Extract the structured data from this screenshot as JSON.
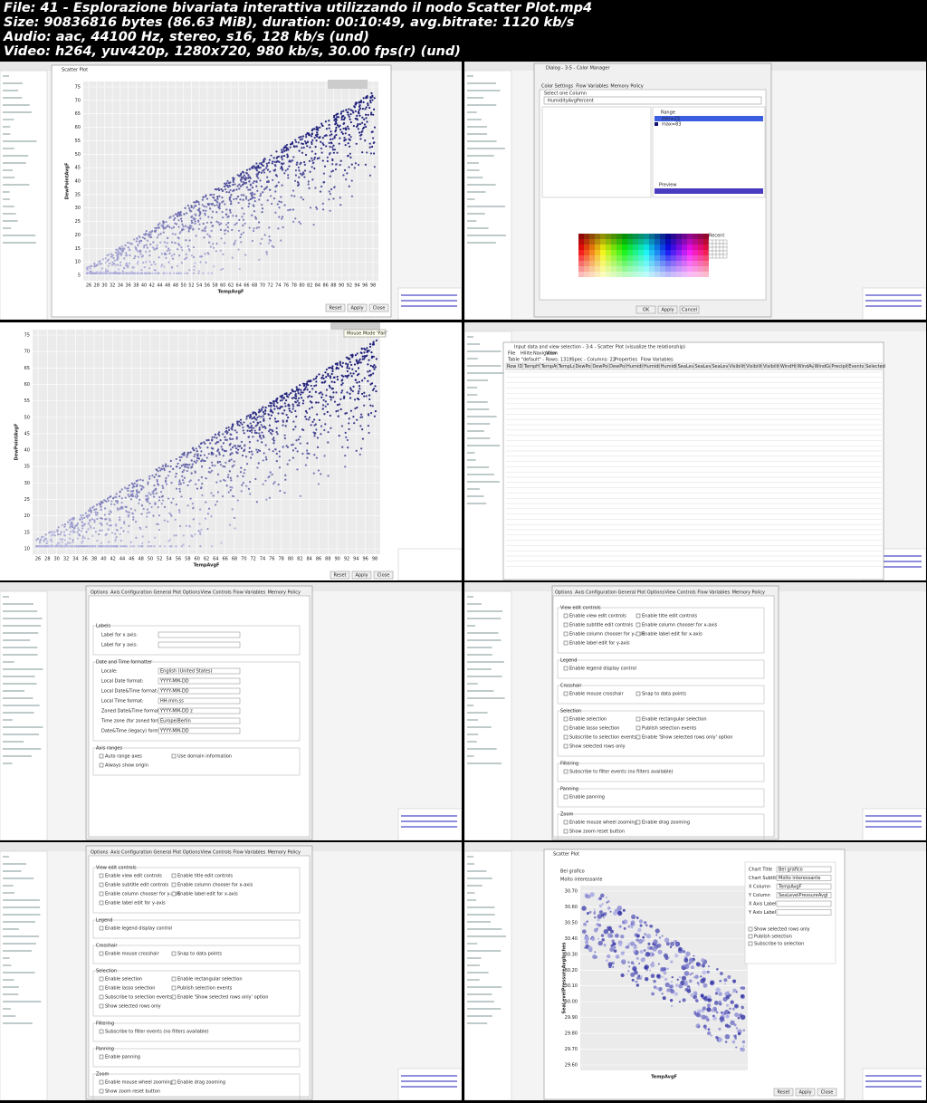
{
  "header": {
    "lines": [
      "File: 41 - Esplorazione bivariata interattiva utilizzando il nodo Scatter Plot.mp4",
      "Size: 90836816 bytes (86.63 MiB), duration: 00:10:49, avg.bitrate: 1120 kb/s",
      "Audio: aac, 44100 Hz, stereo, s16, 128 kb/s (und)",
      "Video: h264, yuv420p, 1280x720, 980 kb/s, 30.00 fps(r) (und)"
    ]
  },
  "frames": [
    {
      "window_title": "Scatter Plot",
      "y_label": "DewPointAvgF",
      "x_label": "TempAvgF",
      "yticks": [
        75,
        70,
        65,
        60,
        55,
        50,
        45,
        40,
        35,
        30,
        25,
        20,
        15,
        10,
        5
      ],
      "xticks": [
        26,
        28,
        30,
        32,
        34,
        36,
        38,
        40,
        42,
        44,
        46,
        48,
        50,
        52,
        54,
        56,
        58,
        60,
        62,
        64,
        66,
        68,
        70,
        72,
        74,
        76,
        78,
        80,
        82,
        84,
        86,
        88,
        90,
        92,
        94,
        96,
        98
      ],
      "buttons": [
        "Reset",
        "Apply",
        "Close"
      ]
    },
    {
      "window_title": "Dialog - 3:5 - Color Manager",
      "tabs": [
        "Color Settings",
        "Flow Variables",
        "Memory Policy"
      ],
      "column_label": "Select one Column",
      "column": "HumidityAvgPercent",
      "range": "Range",
      "range_items": [
        "min=23",
        "max=83"
      ],
      "preview": "Preview",
      "recent": "Recent",
      "buttons": [
        "OK",
        "Apply",
        "Cancel"
      ]
    },
    {
      "tooltip": "Mouse Mode 'Pan'",
      "y_label": "DewPointAvgF",
      "x_label": "TempAvgF",
      "yticks": [
        75,
        70,
        65,
        60,
        55,
        50,
        45,
        40,
        35,
        30,
        25,
        20,
        15,
        10
      ],
      "xticks": [
        26,
        28,
        30,
        32,
        34,
        36,
        38,
        40,
        42,
        44,
        46,
        48,
        50,
        52,
        54,
        56,
        58,
        60,
        62,
        64,
        66,
        68,
        70,
        72,
        74,
        76,
        78,
        80,
        82,
        84,
        86,
        88,
        90,
        92,
        94,
        96,
        98
      ],
      "buttons": [
        "Reset",
        "Apply",
        "Close"
      ]
    },
    {
      "window_title": "Input data and view selection - 3:4 - Scatter Plot (visualize the relationship)",
      "menu": [
        "File",
        "Hilite",
        "Navigation",
        "View"
      ],
      "tabs": [
        "Table \"default\" - Rows: 1319",
        "Spec - Columns: 22",
        "Properties",
        "Flow Variables"
      ],
      "headers": [
        "Row ID",
        "TempHighF",
        "TempAvgF",
        "TempLowF",
        "DewPoint",
        "DewPoint",
        "DewPoint",
        "Humidity",
        "Humidity",
        "Humidity",
        "SeaLevel",
        "SeaLevel",
        "SeaLevel",
        "Visibility",
        "Visibility",
        "Visibility",
        "WindHigh",
        "WindAvg",
        "WindGust",
        "Precipit",
        "Events",
        "Selected"
      ]
    },
    {
      "tabs": [
        "Options",
        "Axis Configuration",
        "General Plot Options",
        "View Controls",
        "Flow Variables",
        "Memory Policy"
      ],
      "groups": [
        {
          "title": "Labels",
          "fields": [
            {
              "label": "Label for x axis:"
            },
            {
              "label": "Label for y axis:"
            }
          ]
        },
        {
          "title": "Date and Time formatter",
          "fields": [
            {
              "label": "Locale:",
              "value": "English (United States)"
            },
            {
              "label": "Local Date format:",
              "value": "YYYY-MM-DD"
            },
            {
              "label": "Local Date&Time format:",
              "value": "YYYY-MM-DD"
            },
            {
              "label": "Local Time format:",
              "value": "HH:mm:ss"
            },
            {
              "label": "Zoned Date&Time format:",
              "value": "YYYY-MM-DD z"
            },
            {
              "label": "Time zone (for zoned format):",
              "value": "Europe/Berlin"
            },
            {
              "label": "Date&Time (legacy) format:",
              "value": "YYYY-MM-DD"
            }
          ]
        },
        {
          "title": "Axis ranges",
          "items": [
            "Auto range axes",
            "Use domain information",
            "Always show origin"
          ]
        }
      ]
    },
    {
      "tabs": [
        "Options",
        "Axis Configuration",
        "General Plot Options",
        "View Controls",
        "Flow Variables",
        "Memory Policy"
      ],
      "groups": [
        {
          "title": "View edit controls",
          "items": [
            "Enable view edit controls",
            "Enable title edit controls",
            "Enable subtitle edit controls",
            "Enable column chooser for x-axis",
            "Enable column chooser for y-axis",
            "Enable label edit for x-axis",
            "Enable label edit for y-axis"
          ]
        },
        {
          "title": "Legend",
          "items": [
            "Enable legend display control"
          ]
        },
        {
          "title": "Crosshair",
          "items": [
            "Enable mouse crosshair",
            "Snap to data points"
          ]
        },
        {
          "title": "Selection",
          "items": [
            "Enable selection",
            "Enable rectangular selection",
            "Enable lasso selection",
            "Publish selection events",
            "Subscribe to selection events",
            "Enable 'Show selected rows only' option",
            "Show selected rows only"
          ]
        },
        {
          "title": "Filtering",
          "items": [
            "Subscribe to filter events (no filters available)"
          ]
        },
        {
          "title": "Panning",
          "items": [
            "Enable panning"
          ]
        },
        {
          "title": "Zoom",
          "items": [
            "Enable mouse wheel zooming",
            "Enable drag zooming",
            "Show zoom reset button"
          ]
        }
      ]
    },
    {
      "tabs": [
        "Options",
        "Axis Configuration",
        "General Plot Options",
        "View Controls",
        "Flow Variables",
        "Memory Policy"
      ],
      "groups": [
        {
          "title": "View edit controls",
          "items": [
            "Enable view edit controls",
            "Enable title edit controls",
            "Enable subtitle edit controls",
            "Enable column chooser for x-axis",
            "Enable column chooser for y-axis",
            "Enable label edit for x-axis",
            "Enable label edit for y-axis"
          ]
        },
        {
          "title": "Legend",
          "items": [
            "Enable legend display control"
          ]
        },
        {
          "title": "Crosshair",
          "items": [
            "Enable mouse crosshair",
            "Snap to data points"
          ]
        },
        {
          "title": "Selection",
          "items": [
            "Enable selection",
            "Enable rectangular selection",
            "Enable lasso selection",
            "Publish selection events",
            "Subscribe to selection events",
            "Enable 'Show selected rows only' option",
            "Show selected rows only"
          ]
        },
        {
          "title": "Filtering",
          "items": [
            "Subscribe to filter events (no filters available)"
          ]
        },
        {
          "title": "Panning",
          "items": [
            "Enable panning"
          ]
        },
        {
          "title": "Zoom",
          "items": [
            "Enable mouse wheel zooming",
            "Enable drag zooming",
            "Show zoom reset button"
          ]
        }
      ]
    },
    {
      "window_title": "Scatter Plot",
      "chart_title": "Bel grafico",
      "chart_subtitle": "Molto interessante",
      "y_label": "SeaLevelPressureAvgInches",
      "x_label": "TempAvgF",
      "yticks": [
        {
          "value": 30.7,
          "label": "30.70"
        },
        {
          "value": 30.6,
          "label": "30.60"
        },
        {
          "value": 30.5,
          "label": "30.50"
        },
        {
          "value": 30.4,
          "label": "30.40"
        },
        {
          "value": 30.3,
          "label": "30.30"
        },
        {
          "value": 30.2,
          "label": "30.20"
        },
        {
          "value": 30.1,
          "label": "30.10"
        },
        {
          "value": 30,
          "label": "30.00"
        },
        {
          "value": 29.9,
          "label": "29.90"
        },
        {
          "value": 29.8,
          "label": "29.80"
        },
        {
          "value": 29.7,
          "label": "29.70"
        },
        {
          "value": 29.6,
          "label": "29.60"
        }
      ],
      "fields": [
        {
          "label": "Chart Title",
          "value": "Bel grafico"
        },
        {
          "label": "Chart Subtitle",
          "value": "Molto interessante"
        },
        {
          "label": "X Column",
          "value": "TempAvgF"
        },
        {
          "label": "Y Column",
          "value": "SeaLevelPressureAvgI"
        },
        {
          "label": "X Axis Label"
        },
        {
          "label": "Y Axis Label"
        }
      ],
      "options": [
        "Show selected rows only",
        "Publish selection",
        "Subscribe to selection"
      ],
      "buttons": [
        "Reset",
        "Apply",
        "Close"
      ]
    }
  ]
}
